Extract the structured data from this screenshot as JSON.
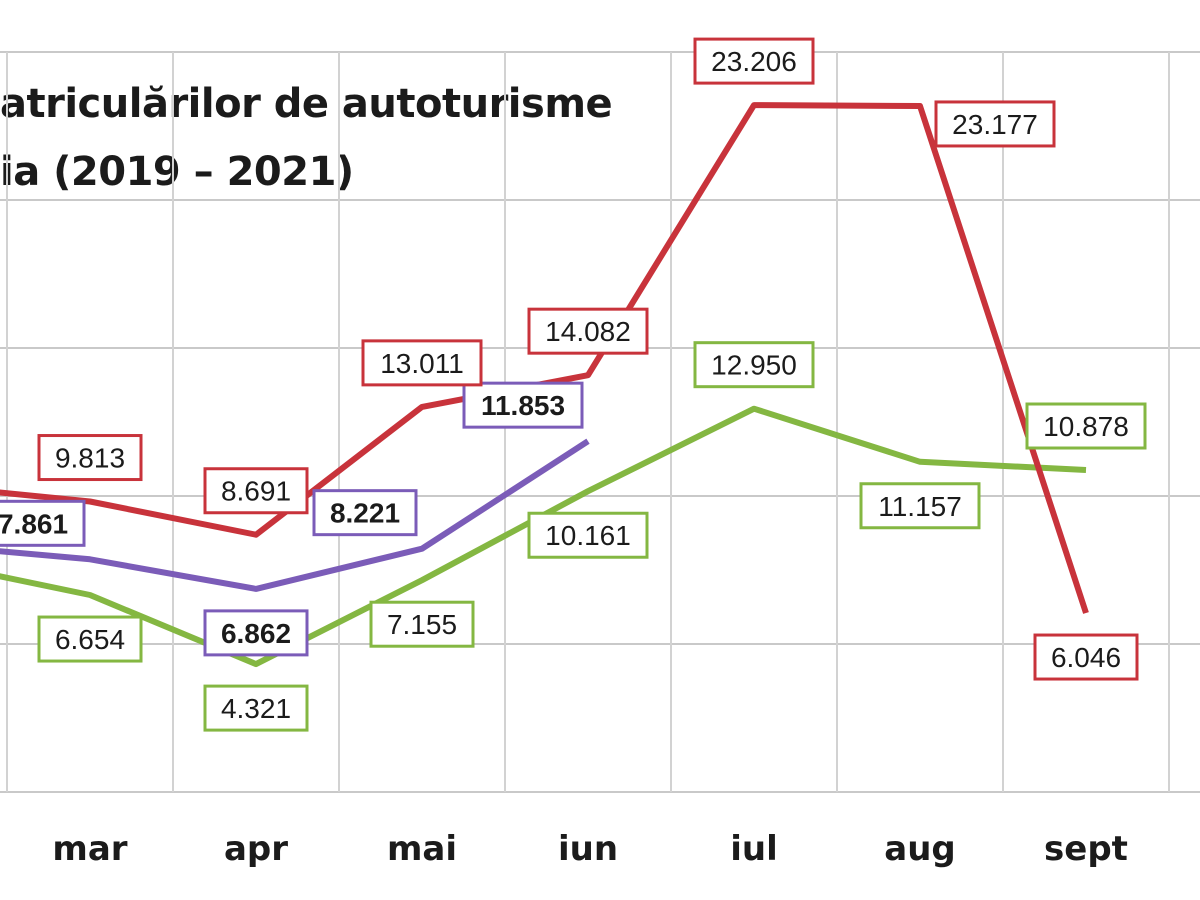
{
  "chart_data": {
    "type": "line",
    "title_lines": [
      "atriculărilor de autoturisme",
      "ia (2019 – 2021)"
    ],
    "categories": [
      "mar",
      "apr",
      "mai",
      "iun",
      "iul",
      "aug",
      "sept"
    ],
    "ylim": [
      0,
      25000
    ],
    "grid": true,
    "series": [
      {
        "key": "red",
        "color": "#c8333b",
        "values": [
          9813,
          8691,
          13011,
          14082,
          23206,
          23177,
          6046
        ],
        "labels": [
          "9.813",
          "8.691",
          "13.011",
          "14.082",
          "23.206",
          "23.177",
          "6.046"
        ],
        "bold": false
      },
      {
        "key": "purple",
        "color": "#7b5cb8",
        "values": [
          7861,
          6862,
          8221,
          11853,
          null,
          null,
          null
        ],
        "labels": [
          "7.861",
          "6.862",
          "8.221",
          "11.853",
          "",
          "",
          ""
        ],
        "bold": true
      },
      {
        "key": "green",
        "color": "#84b742",
        "values": [
          6654,
          4321,
          7155,
          10161,
          12950,
          11157,
          10878
        ],
        "labels": [
          "6.654",
          "4.321",
          "7.155",
          "10.161",
          "12.950",
          "11.157",
          "10.878"
        ],
        "bold": false
      }
    ]
  }
}
